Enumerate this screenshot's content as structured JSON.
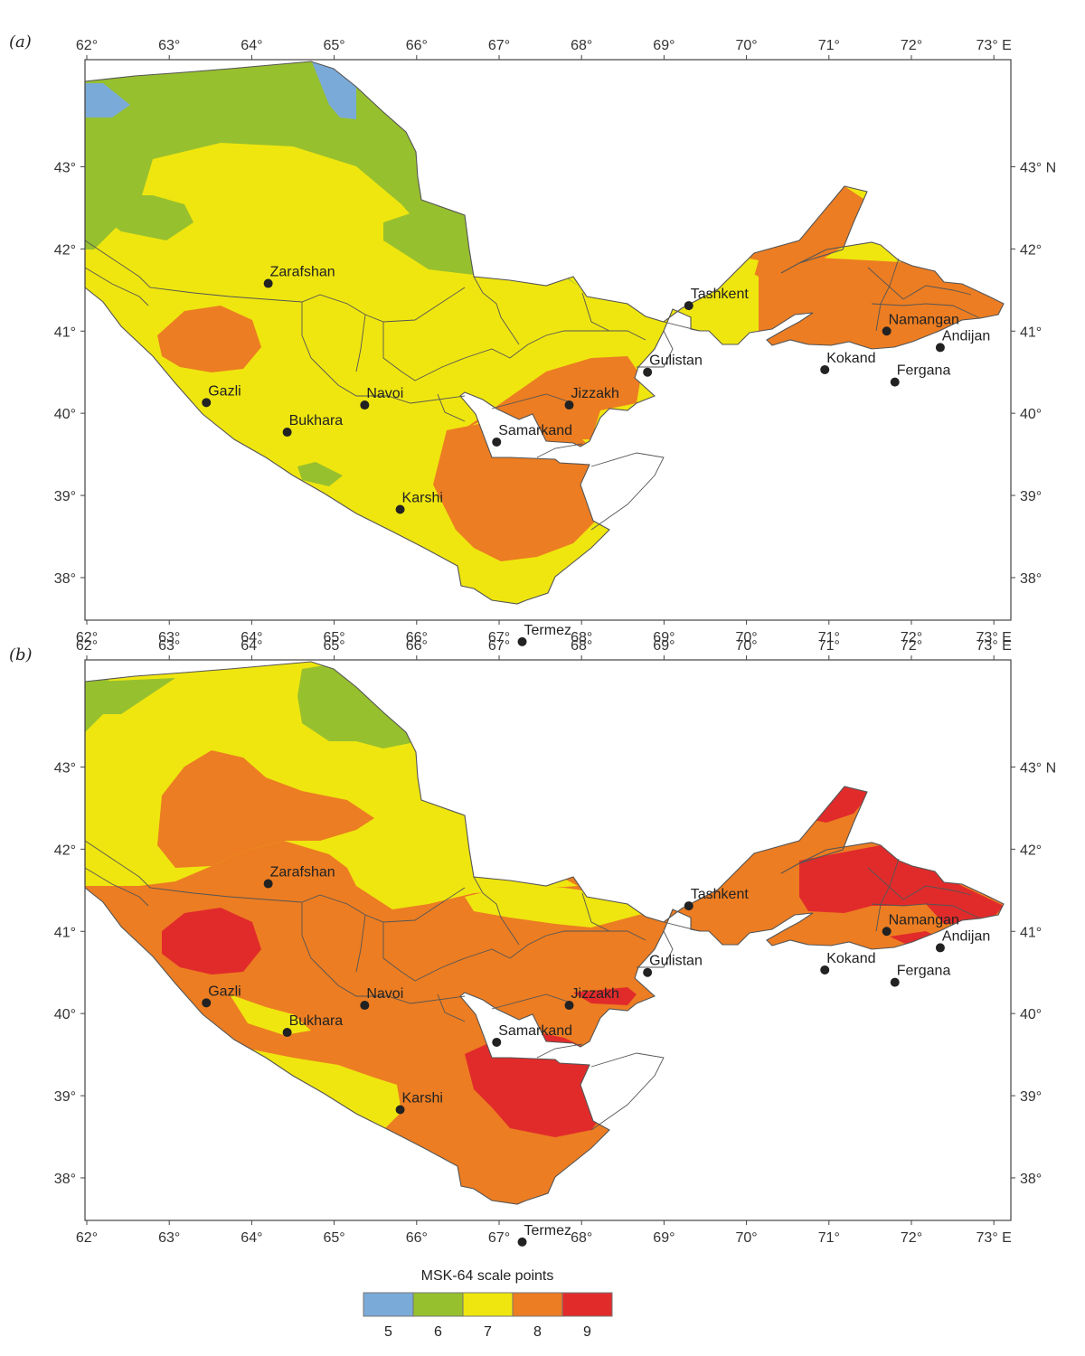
{
  "colors": {
    "p5": "#7aaad8",
    "p6": "#97c02e",
    "p7": "#efe60f",
    "p8": "#ec7d22",
    "p9": "#e12b2b"
  },
  "panels": [
    {
      "label": "(a)",
      "lon_ticks": [
        "62°",
        "63°",
        "64°",
        "65°",
        "66°",
        "67°",
        "68°",
        "69°",
        "70°",
        "71°",
        "72°",
        "73° E"
      ],
      "lat_ticks": [
        "43°",
        "42°",
        "41°",
        "40°",
        "39°",
        "38°"
      ],
      "lat_ticks_right": [
        "43° N",
        "42°",
        "41°",
        "40°",
        "39°",
        "38°"
      ]
    },
    {
      "label": "(b)",
      "lon_ticks": [
        "62°",
        "63°",
        "64°",
        "65°",
        "66°",
        "67°",
        "68°",
        "69°",
        "70°",
        "71°",
        "72°",
        "73° E"
      ],
      "lat_ticks": [
        "43°",
        "42°",
        "41°",
        "40°",
        "39°",
        "38°"
      ],
      "lat_ticks_right": [
        "43° N",
        "42°",
        "41°",
        "40°",
        "39°",
        "38°"
      ]
    }
  ],
  "cities": [
    {
      "name": "Zarafshan",
      "lon": 64.2,
      "lat": 41.58
    },
    {
      "name": "Tashkent",
      "lon": 69.3,
      "lat": 41.31
    },
    {
      "name": "Namangan",
      "lon": 71.7,
      "lat": 41.0
    },
    {
      "name": "Andijan",
      "lon": 72.35,
      "lat": 40.8
    },
    {
      "name": "Gulistan",
      "lon": 68.8,
      "lat": 40.5
    },
    {
      "name": "Kokand",
      "lon": 70.95,
      "lat": 40.53
    },
    {
      "name": "Fergana",
      "lon": 71.8,
      "lat": 40.38
    },
    {
      "name": "Gazli",
      "lon": 63.45,
      "lat": 40.13
    },
    {
      "name": "Navoi",
      "lon": 65.37,
      "lat": 40.1
    },
    {
      "name": "Jizzakh",
      "lon": 67.85,
      "lat": 40.1
    },
    {
      "name": "Bukhara",
      "lon": 64.43,
      "lat": 39.77
    },
    {
      "name": "Samarkand",
      "lon": 66.97,
      "lat": 39.65
    },
    {
      "name": "Karshi",
      "lon": 65.8,
      "lat": 38.83
    },
    {
      "name": "Termez",
      "lon": 67.28,
      "lat": 37.22
    }
  ],
  "legend": {
    "title": "MSK-64 scale points",
    "items": [
      {
        "value": "5",
        "color": "#7aaad8"
      },
      {
        "value": "6",
        "color": "#97c02e"
      },
      {
        "value": "7",
        "color": "#efe60f"
      },
      {
        "value": "8",
        "color": "#ec7d22"
      },
      {
        "value": "9",
        "color": "#e12b2b"
      }
    ]
  }
}
